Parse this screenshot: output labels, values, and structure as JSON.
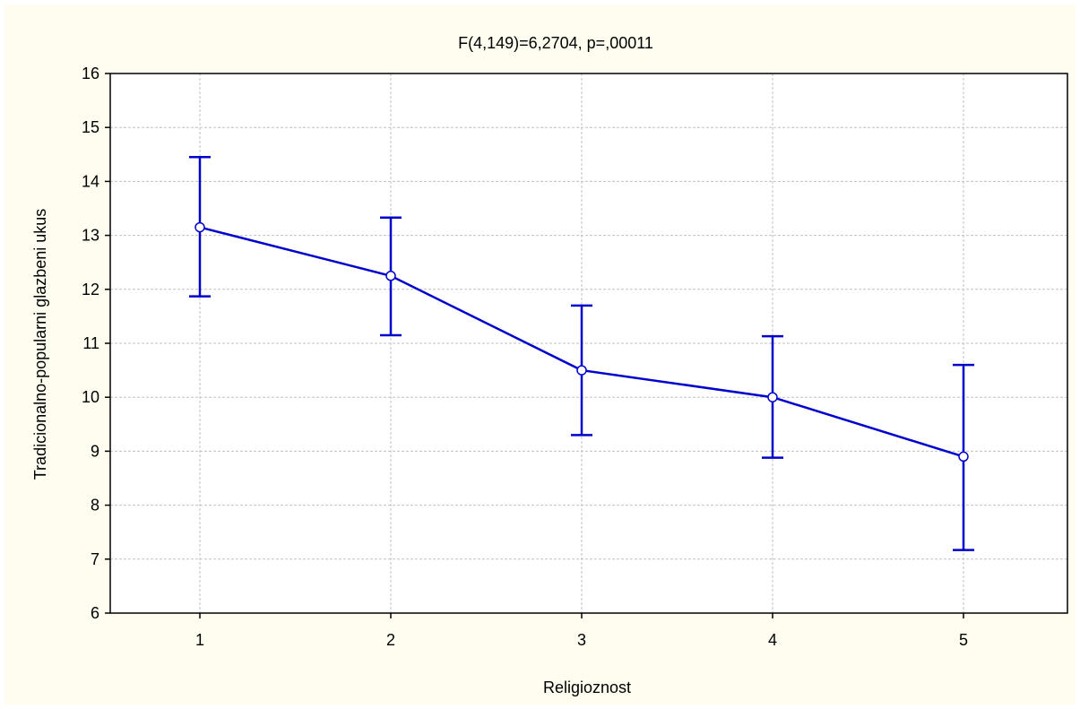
{
  "chart_data": {
    "type": "line",
    "title": "F(4,149)=6,2704, p=,00011",
    "xlabel": "Religioznost",
    "ylabel": "Tradicionalno-popularni glazbeni ukus",
    "categories": [
      "1",
      "2",
      "3",
      "4",
      "5"
    ],
    "ylim": [
      6,
      16
    ],
    "yticks": [
      "6",
      "7",
      "8",
      "9",
      "10",
      "11",
      "12",
      "13",
      "14",
      "15",
      "16"
    ],
    "grid": true,
    "series": [
      {
        "values": [
          13.15,
          12.25,
          10.5,
          10.0,
          8.9
        ],
        "lower": [
          11.87,
          11.15,
          9.3,
          8.88,
          7.17
        ],
        "upper": [
          14.45,
          13.33,
          11.7,
          11.13,
          10.6
        ]
      }
    ],
    "colors": {
      "line": "#0000cc",
      "background": "#fffdf0",
      "plot_background": "#ffffff",
      "grid": "#c0c0c0"
    }
  }
}
